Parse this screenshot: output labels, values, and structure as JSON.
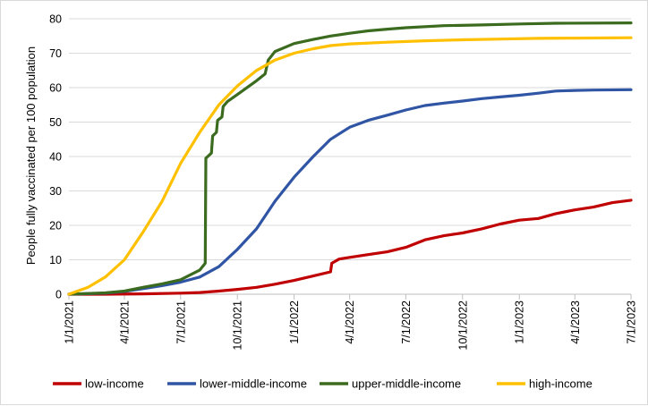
{
  "chart_data": {
    "type": "line",
    "title": "",
    "xlabel": "",
    "ylabel": "People fully vaccinated per 100 population",
    "ylim": [
      0,
      80
    ],
    "yticks": [
      0,
      10,
      20,
      30,
      40,
      50,
      60,
      70,
      80
    ],
    "xlim": [
      "2021-01-01",
      "2023-07-01"
    ],
    "xticks": [
      {
        "date": "2021-01-01",
        "label": "1/1/2021"
      },
      {
        "date": "2021-04-01",
        "label": "4/1/2021"
      },
      {
        "date": "2021-07-01",
        "label": "7/1/2021"
      },
      {
        "date": "2021-10-01",
        "label": "10/1/2021"
      },
      {
        "date": "2022-01-01",
        "label": "1/1/2022"
      },
      {
        "date": "2022-04-01",
        "label": "4/1/2022"
      },
      {
        "date": "2022-07-01",
        "label": "7/1/2022"
      },
      {
        "date": "2022-10-01",
        "label": "10/1/2022"
      },
      {
        "date": "2023-01-01",
        "label": "1/1/2023"
      },
      {
        "date": "2023-04-01",
        "label": "4/1/2023"
      },
      {
        "date": "2023-07-01",
        "label": "7/1/2023"
      }
    ],
    "grid": true,
    "legend_position": "bottom",
    "series": [
      {
        "name": "low-income",
        "color": "#c00000",
        "points": [
          [
            "2021-01-01",
            0
          ],
          [
            "2021-03-01",
            0
          ],
          [
            "2021-05-01",
            0.1
          ],
          [
            "2021-07-01",
            0.3
          ],
          [
            "2021-08-01",
            0.5
          ],
          [
            "2021-09-01",
            0.9
          ],
          [
            "2021-10-01",
            1.4
          ],
          [
            "2021-11-01",
            2.0
          ],
          [
            "2021-12-01",
            2.9
          ],
          [
            "2022-01-01",
            4.0
          ],
          [
            "2022-02-01",
            5.3
          ],
          [
            "2022-03-01",
            6.5
          ],
          [
            "2022-03-03",
            9.0
          ],
          [
            "2022-03-15",
            10.2
          ],
          [
            "2022-04-01",
            10.7
          ],
          [
            "2022-05-01",
            11.5
          ],
          [
            "2022-06-01",
            12.3
          ],
          [
            "2022-07-01",
            13.6
          ],
          [
            "2022-08-01",
            15.8
          ],
          [
            "2022-09-01",
            17.0
          ],
          [
            "2022-10-01",
            17.8
          ],
          [
            "2022-11-01",
            19.0
          ],
          [
            "2022-12-01",
            20.4
          ],
          [
            "2023-01-01",
            21.5
          ],
          [
            "2023-02-01",
            22.0
          ],
          [
            "2023-03-01",
            23.4
          ],
          [
            "2023-04-01",
            24.5
          ],
          [
            "2023-05-01",
            25.3
          ],
          [
            "2023-06-01",
            26.6
          ],
          [
            "2023-07-01",
            27.3
          ]
        ]
      },
      {
        "name": "lower-middle-income",
        "color": "#2f55a4",
        "points": [
          [
            "2021-01-01",
            0
          ],
          [
            "2021-03-01",
            0.3
          ],
          [
            "2021-04-01",
            0.8
          ],
          [
            "2021-05-01",
            1.6
          ],
          [
            "2021-06-01",
            2.5
          ],
          [
            "2021-07-01",
            3.5
          ],
          [
            "2021-08-01",
            5.0
          ],
          [
            "2021-09-01",
            8.0
          ],
          [
            "2021-10-01",
            13.0
          ],
          [
            "2021-11-01",
            19.0
          ],
          [
            "2021-12-01",
            27.0
          ],
          [
            "2022-01-01",
            34.0
          ],
          [
            "2022-02-01",
            40.0
          ],
          [
            "2022-03-01",
            45.0
          ],
          [
            "2022-04-01",
            48.5
          ],
          [
            "2022-05-01",
            50.5
          ],
          [
            "2022-06-01",
            52.0
          ],
          [
            "2022-07-01",
            53.5
          ],
          [
            "2022-08-01",
            54.8
          ],
          [
            "2022-09-01",
            55.5
          ],
          [
            "2022-10-01",
            56.1
          ],
          [
            "2022-11-01",
            56.8
          ],
          [
            "2022-12-01",
            57.3
          ],
          [
            "2023-01-01",
            57.8
          ],
          [
            "2023-02-01",
            58.4
          ],
          [
            "2023-03-01",
            59.0
          ],
          [
            "2023-04-01",
            59.2
          ],
          [
            "2023-05-01",
            59.3
          ],
          [
            "2023-07-01",
            59.4
          ]
        ]
      },
      {
        "name": "upper-middle-income",
        "color": "#3b6b1f",
        "points": [
          [
            "2021-01-01",
            0
          ],
          [
            "2021-03-01",
            0.4
          ],
          [
            "2021-04-01",
            0.9
          ],
          [
            "2021-05-01",
            2.0
          ],
          [
            "2021-06-01",
            3.0
          ],
          [
            "2021-07-01",
            4.2
          ],
          [
            "2021-08-01",
            7.0
          ],
          [
            "2021-08-10",
            9.0
          ],
          [
            "2021-08-11",
            39.5
          ],
          [
            "2021-08-20",
            41.0
          ],
          [
            "2021-08-22",
            46.0
          ],
          [
            "2021-08-28",
            47.0
          ],
          [
            "2021-08-30",
            50.5
          ],
          [
            "2021-09-06",
            51.5
          ],
          [
            "2021-09-08",
            54.5
          ],
          [
            "2021-09-15",
            56.0
          ],
          [
            "2021-10-01",
            58.0
          ],
          [
            "2021-11-01",
            62.0
          ],
          [
            "2021-11-15",
            64.0
          ],
          [
            "2021-11-20",
            68.0
          ],
          [
            "2021-12-01",
            70.5
          ],
          [
            "2022-01-01",
            72.8
          ],
          [
            "2022-02-01",
            74.0
          ],
          [
            "2022-03-01",
            75.0
          ],
          [
            "2022-04-01",
            75.8
          ],
          [
            "2022-05-01",
            76.5
          ],
          [
            "2022-06-01",
            77.0
          ],
          [
            "2022-07-01",
            77.4
          ],
          [
            "2022-09-01",
            78.0
          ],
          [
            "2022-11-01",
            78.2
          ],
          [
            "2023-01-01",
            78.5
          ],
          [
            "2023-03-01",
            78.7
          ],
          [
            "2023-07-01",
            78.8
          ]
        ]
      },
      {
        "name": "high-income",
        "color": "#ffc000",
        "points": [
          [
            "2021-01-01",
            0
          ],
          [
            "2021-02-01",
            2.0
          ],
          [
            "2021-03-01",
            5.0
          ],
          [
            "2021-04-01",
            10.0
          ],
          [
            "2021-05-01",
            18.0
          ],
          [
            "2021-06-01",
            27.0
          ],
          [
            "2021-07-01",
            38.0
          ],
          [
            "2021-08-01",
            47.0
          ],
          [
            "2021-09-01",
            55.0
          ],
          [
            "2021-10-01",
            60.5
          ],
          [
            "2021-11-01",
            65.0
          ],
          [
            "2021-12-01",
            68.0
          ],
          [
            "2022-01-01",
            70.0
          ],
          [
            "2022-02-01",
            71.3
          ],
          [
            "2022-03-01",
            72.2
          ],
          [
            "2022-04-01",
            72.7
          ],
          [
            "2022-06-01",
            73.2
          ],
          [
            "2022-08-01",
            73.6
          ],
          [
            "2022-10-01",
            73.9
          ],
          [
            "2022-12-01",
            74.1
          ],
          [
            "2023-02-01",
            74.3
          ],
          [
            "2023-04-01",
            74.4
          ],
          [
            "2023-07-01",
            74.5
          ]
        ]
      }
    ]
  }
}
